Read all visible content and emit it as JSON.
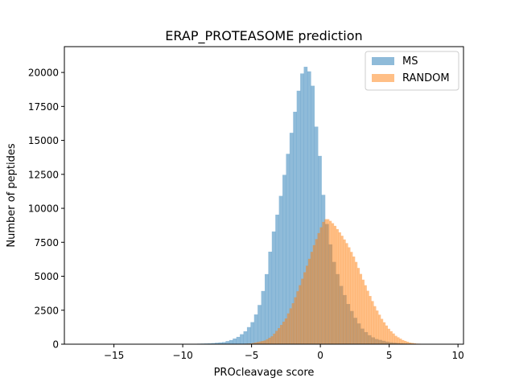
{
  "chart_data": {
    "type": "histogram",
    "title": "ERAP_PROTEASOME prediction",
    "xlabel": "PROcleavage score",
    "ylabel": "Number of peptides",
    "xlim": [
      -18.6,
      10.4
    ],
    "ylim": [
      0,
      21900
    ],
    "x_ticks": [
      -15,
      -10,
      -5,
      0,
      5,
      10
    ],
    "x_tick_labels": [
      "−15",
      "−10",
      "−5",
      "0",
      "5",
      "10"
    ],
    "y_ticks": [
      0,
      2500,
      5000,
      7500,
      10000,
      12500,
      15000,
      17500,
      20000
    ],
    "y_tick_labels": [
      "0",
      "2500",
      "5000",
      "7500",
      "10000",
      "12500",
      "15000",
      "17500",
      "20000"
    ],
    "grid": false,
    "legend": {
      "position": "top-right"
    },
    "series": [
      {
        "name": "MS",
        "color": "#1f77b4",
        "alpha": 0.5,
        "bin_edges": [
          -17.2,
          8.6
        ],
        "peaks": [
          {
            "x": -17.0,
            "y": 8
          },
          {
            "x": -15.0,
            "y": 10
          },
          {
            "x": -13.0,
            "y": 12
          },
          {
            "x": -11.0,
            "y": 15
          },
          {
            "x": -9.0,
            "y": 30
          },
          {
            "x": -8.0,
            "y": 60
          },
          {
            "x": -7.0,
            "y": 150
          },
          {
            "x": -6.5,
            "y": 300
          },
          {
            "x": -6.0,
            "y": 520
          },
          {
            "x": -5.5,
            "y": 900
          },
          {
            "x": -5.0,
            "y": 1500
          },
          {
            "x": -4.5,
            "y": 2600
          },
          {
            "x": -4.0,
            "y": 4600
          },
          {
            "x": -3.5,
            "y": 7800
          },
          {
            "x": -3.0,
            "y": 10200
          },
          {
            "x": -2.5,
            "y": 13200
          },
          {
            "x": -2.0,
            "y": 16200
          },
          {
            "x": -1.5,
            "y": 19200
          },
          {
            "x": -1.2,
            "y": 20500
          },
          {
            "x": -0.9,
            "y": 20300
          },
          {
            "x": -0.6,
            "y": 19500
          },
          {
            "x": -0.3,
            "y": 16000
          },
          {
            "x": 0.0,
            "y": 13500
          },
          {
            "x": 0.3,
            "y": 10000
          },
          {
            "x": 0.6,
            "y": 8000
          },
          {
            "x": 1.0,
            "y": 6000
          },
          {
            "x": 1.5,
            "y": 4300
          },
          {
            "x": 2.0,
            "y": 3000
          },
          {
            "x": 2.5,
            "y": 2000
          },
          {
            "x": 3.0,
            "y": 1200
          },
          {
            "x": 3.5,
            "y": 700
          },
          {
            "x": 4.0,
            "y": 400
          },
          {
            "x": 5.0,
            "y": 150
          },
          {
            "x": 6.0,
            "y": 50
          },
          {
            "x": 7.0,
            "y": 20
          },
          {
            "x": 8.5,
            "y": 5
          }
        ]
      },
      {
        "name": "RANDOM",
        "color": "#ff7f0e",
        "alpha": 0.5,
        "bin_edges": [
          -8.2,
          8.8
        ],
        "peaks": [
          {
            "x": -8.0,
            "y": 0
          },
          {
            "x": -6.0,
            "y": 10
          },
          {
            "x": -5.0,
            "y": 60
          },
          {
            "x": -4.0,
            "y": 280
          },
          {
            "x": -3.5,
            "y": 600
          },
          {
            "x": -3.0,
            "y": 1200
          },
          {
            "x": -2.5,
            "y": 1900
          },
          {
            "x": -2.0,
            "y": 3000
          },
          {
            "x": -1.5,
            "y": 4300
          },
          {
            "x": -1.0,
            "y": 5700
          },
          {
            "x": -0.5,
            "y": 7200
          },
          {
            "x": 0.0,
            "y": 8500
          },
          {
            "x": 0.3,
            "y": 9200
          },
          {
            "x": 0.6,
            "y": 9200
          },
          {
            "x": 1.0,
            "y": 8800
          },
          {
            "x": 1.5,
            "y": 8100
          },
          {
            "x": 2.0,
            "y": 7300
          },
          {
            "x": 2.5,
            "y": 6300
          },
          {
            "x": 3.0,
            "y": 5000
          },
          {
            "x": 3.5,
            "y": 3800
          },
          {
            "x": 4.0,
            "y": 2700
          },
          {
            "x": 4.5,
            "y": 1800
          },
          {
            "x": 5.0,
            "y": 1100
          },
          {
            "x": 5.5,
            "y": 600
          },
          {
            "x": 6.0,
            "y": 300
          },
          {
            "x": 6.5,
            "y": 120
          },
          {
            "x": 7.0,
            "y": 40
          },
          {
            "x": 8.0,
            "y": 5
          }
        ]
      }
    ]
  }
}
